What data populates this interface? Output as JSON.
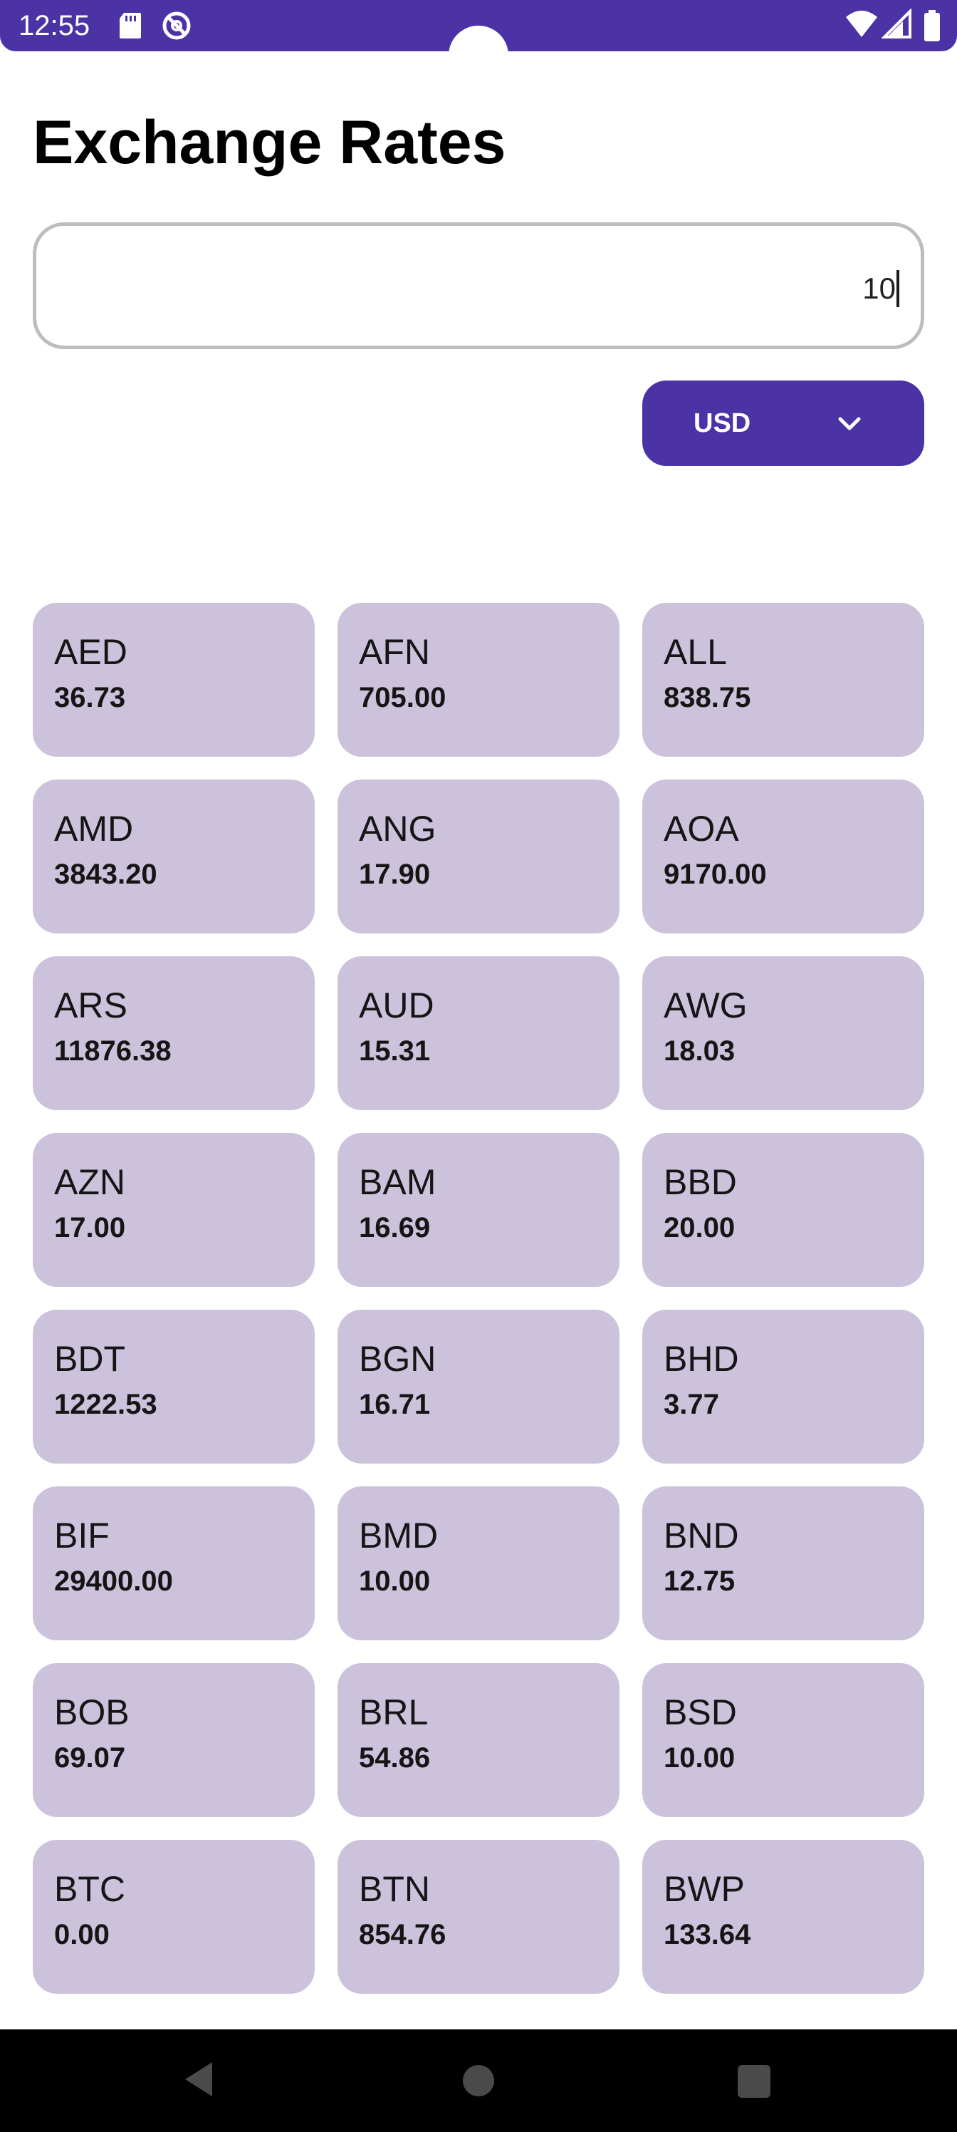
{
  "status_bar": {
    "time": "12:55",
    "icons": [
      "sd-card-icon",
      "do-not-disturb-icon",
      "wifi-icon",
      "signal-icon",
      "battery-icon"
    ]
  },
  "page": {
    "title": "Exchange Rates"
  },
  "amount_input": {
    "value": "10"
  },
  "currency_select": {
    "selected": "USD",
    "icon": "chevron-down-icon"
  },
  "rates": [
    {
      "code": "AED",
      "value": "36.73"
    },
    {
      "code": "AFN",
      "value": "705.00"
    },
    {
      "code": "ALL",
      "value": "838.75"
    },
    {
      "code": "AMD",
      "value": "3843.20"
    },
    {
      "code": "ANG",
      "value": "17.90"
    },
    {
      "code": "AOA",
      "value": "9170.00"
    },
    {
      "code": "ARS",
      "value": "11876.38"
    },
    {
      "code": "AUD",
      "value": "15.31"
    },
    {
      "code": "AWG",
      "value": "18.03"
    },
    {
      "code": "AZN",
      "value": "17.00"
    },
    {
      "code": "BAM",
      "value": "16.69"
    },
    {
      "code": "BBD",
      "value": "20.00"
    },
    {
      "code": "BDT",
      "value": "1222.53"
    },
    {
      "code": "BGN",
      "value": "16.71"
    },
    {
      "code": "BHD",
      "value": "3.77"
    },
    {
      "code": "BIF",
      "value": "29400.00"
    },
    {
      "code": "BMD",
      "value": "10.00"
    },
    {
      "code": "BND",
      "value": "12.75"
    },
    {
      "code": "BOB",
      "value": "69.07"
    },
    {
      "code": "BRL",
      "value": "54.86"
    },
    {
      "code": "BSD",
      "value": "10.00"
    },
    {
      "code": "BTC",
      "value": "0.00"
    },
    {
      "code": "BTN",
      "value": "854.76"
    },
    {
      "code": "BWP",
      "value": "133.64"
    }
  ],
  "colors": {
    "accent": "#4b33a6",
    "card": "#ccc2dc"
  },
  "nav_bar": {
    "icons": [
      "back-icon",
      "home-icon",
      "recents-icon"
    ]
  }
}
